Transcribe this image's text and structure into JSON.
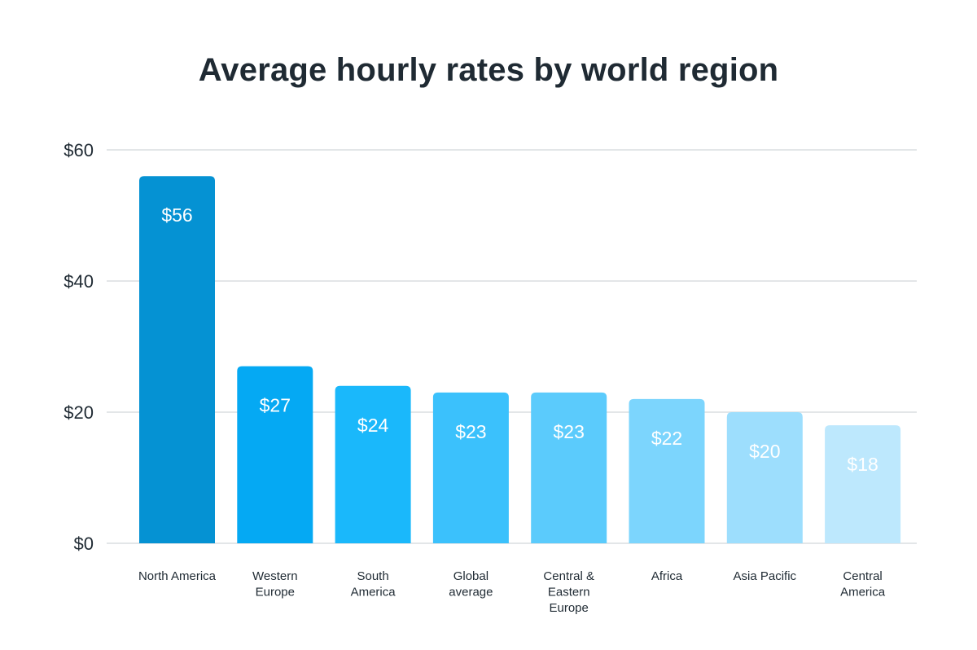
{
  "chart_data": {
    "type": "bar",
    "title": "Average hourly rates by world region",
    "xlabel": "",
    "ylabel": "",
    "ylim": [
      0,
      60
    ],
    "yticks": [
      0,
      20,
      40,
      60
    ],
    "ytick_labels": [
      "$0",
      "$20",
      "$40",
      "$60"
    ],
    "grid": true,
    "categories": [
      [
        "North America"
      ],
      [
        "Western",
        "Europe"
      ],
      [
        "South",
        "America"
      ],
      [
        "Global",
        "average"
      ],
      [
        "Central &",
        "Eastern",
        "Europe"
      ],
      [
        "Africa"
      ],
      [
        "Asia Pacific"
      ],
      [
        "Central",
        "America"
      ]
    ],
    "values": [
      56,
      27,
      24,
      23,
      23,
      22,
      20,
      18
    ],
    "data_labels": [
      "$56",
      "$27",
      "$24",
      "$23",
      "$23",
      "$22",
      "$20",
      "$18"
    ],
    "colors": [
      "#0592d3",
      "#05a9f3",
      "#1ab8fb",
      "#3bc1fc",
      "#5bcbfc",
      "#7cd5fd",
      "#9ddefd",
      "#bde8fd"
    ]
  }
}
